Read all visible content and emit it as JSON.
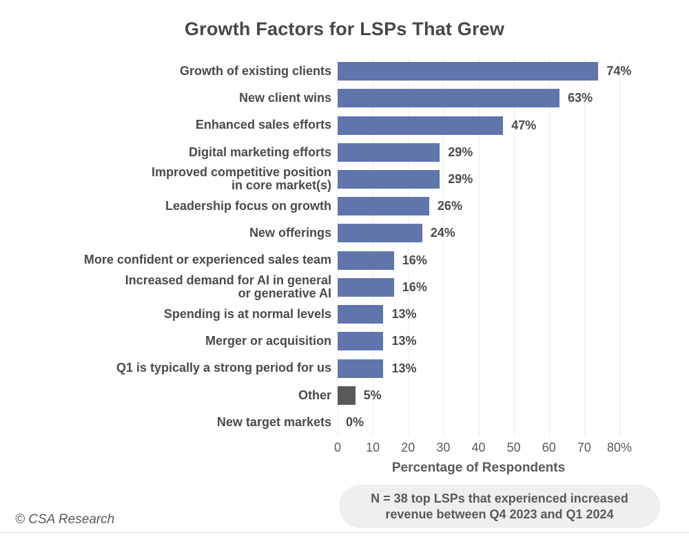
{
  "page": {
    "copyright": "© CSA Research",
    "note_lines": [
      "N = 38 top LSPs that experienced increased",
      "revenue between Q4 2023 and Q1 2024"
    ]
  },
  "chart_data": {
    "type": "bar",
    "orientation": "horizontal",
    "title": "Growth Factors for LSPs That Grew",
    "xlabel": "Percentage of Respondents",
    "ylabel": "",
    "xlim": [
      0,
      80
    ],
    "grid": true,
    "legend": "none",
    "xticks": [
      {
        "value": 0,
        "label": "0"
      },
      {
        "value": 10,
        "label": "10"
      },
      {
        "value": 20,
        "label": "20"
      },
      {
        "value": 30,
        "label": "30"
      },
      {
        "value": 40,
        "label": "40"
      },
      {
        "value": 50,
        "label": "50"
      },
      {
        "value": 60,
        "label": "60"
      },
      {
        "value": 70,
        "label": "70"
      },
      {
        "value": 80,
        "label": "80%"
      }
    ],
    "bars": [
      {
        "label_lines": [
          "Growth of existing clients"
        ],
        "value": 74,
        "value_label": "74%",
        "color": "#5F75AC"
      },
      {
        "label_lines": [
          "New client wins"
        ],
        "value": 63,
        "value_label": "63%",
        "color": "#5F75AC"
      },
      {
        "label_lines": [
          "Enhanced sales efforts"
        ],
        "value": 47,
        "value_label": "47%",
        "color": "#5F75AC"
      },
      {
        "label_lines": [
          "Digital marketing efforts"
        ],
        "value": 29,
        "value_label": "29%",
        "color": "#5F75AC"
      },
      {
        "label_lines": [
          "Improved competitive position",
          "in core market(s)"
        ],
        "value": 29,
        "value_label": "29%",
        "color": "#5F75AC"
      },
      {
        "label_lines": [
          "Leadership focus on growth"
        ],
        "value": 26,
        "value_label": "26%",
        "color": "#5F75AC"
      },
      {
        "label_lines": [
          "New offerings"
        ],
        "value": 24,
        "value_label": "24%",
        "color": "#5F75AC"
      },
      {
        "label_lines": [
          "More confident or experienced sales team"
        ],
        "value": 16,
        "value_label": "16%",
        "color": "#5F75AC"
      },
      {
        "label_lines": [
          "Increased demand for AI in general",
          "or generative AI"
        ],
        "value": 16,
        "value_label": "16%",
        "color": "#5F75AC"
      },
      {
        "label_lines": [
          "Spending is at normal levels"
        ],
        "value": 13,
        "value_label": "13%",
        "color": "#5F75AC"
      },
      {
        "label_lines": [
          "Merger or acquisition"
        ],
        "value": 13,
        "value_label": "13%",
        "color": "#5F75AC"
      },
      {
        "label_lines": [
          "Q1 is typically a strong period for us"
        ],
        "value": 13,
        "value_label": "13%",
        "color": "#5F75AC"
      },
      {
        "label_lines": [
          "Other"
        ],
        "value": 5,
        "value_label": "5%",
        "color": "#595959"
      },
      {
        "label_lines": [
          "New target markets"
        ],
        "value": 0,
        "value_label": "0%",
        "color": "#5F75AC"
      }
    ],
    "style": {
      "bar_color": "#5F75AC",
      "other_bar_color": "#595959",
      "gridline_color": "#EAEAEA",
      "title_color": "#474747",
      "label_color": "#4A4A4A",
      "axis_text_color": "#595959",
      "note_bg_color": "#EFEFEF"
    }
  }
}
